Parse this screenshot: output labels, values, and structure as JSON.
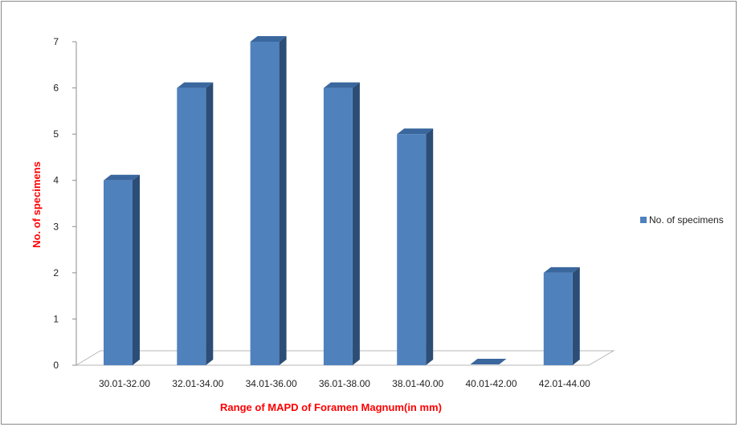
{
  "chart_data": {
    "type": "bar",
    "categories": [
      "30.01-32.00",
      "32.01-34.00",
      "34.01-36.00",
      "36.01-38.00",
      "38.01-40.00",
      "40.01-42.00",
      "42.01-44.00"
    ],
    "series": [
      {
        "name": "No. of specimens",
        "values": [
          4,
          6,
          7,
          6,
          5,
          0,
          2
        ]
      }
    ],
    "title": "",
    "xlabel": "Range of MAPD of Foramen Magnum(in mm)",
    "ylabel": "No. of specimens",
    "ylim": [
      0,
      7
    ],
    "yticks": [
      "0",
      "1",
      "2",
      "3",
      "4",
      "5",
      "6",
      "7"
    ],
    "grid": false,
    "legend_position": "right",
    "bar_style": "3d-column",
    "colors": {
      "bar_front": "#4f81bd",
      "bar_side": "#2c4d75",
      "bar_top": "#3a679e",
      "axis_title": "#ff0000",
      "axis_line": "#8c8c8c"
    }
  }
}
